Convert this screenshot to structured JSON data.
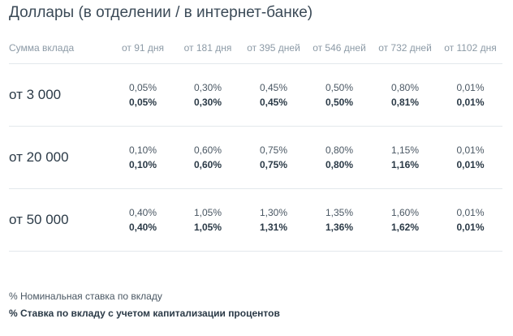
{
  "page_title": "Доллары (в отделении / в интернет-банке)",
  "table": {
    "amount_header": "Сумма вклада",
    "terms": [
      "от 91 дня",
      "от 181 дня",
      "от 395 дней",
      "от 546 дней",
      "от 732 дней",
      "от 1102 дня"
    ],
    "rows": [
      {
        "amount": "от 3 000",
        "nominal": [
          "0,05%",
          "0,30%",
          "0,45%",
          "0,50%",
          "0,80%",
          "0,01%"
        ],
        "effective": [
          "0,05%",
          "0,30%",
          "0,45%",
          "0,50%",
          "0,81%",
          "0,01%"
        ]
      },
      {
        "amount": "от 20 000",
        "nominal": [
          "0,10%",
          "0,60%",
          "0,75%",
          "0,80%",
          "1,15%",
          "0,01%"
        ],
        "effective": [
          "0,10%",
          "0,60%",
          "0,75%",
          "0,80%",
          "1,16%",
          "0,01%"
        ]
      },
      {
        "amount": "от 50 000",
        "nominal": [
          "0,40%",
          "1,05%",
          "1,30%",
          "1,35%",
          "1,60%",
          "0,01%"
        ],
        "effective": [
          "0,40%",
          "1,05%",
          "1,31%",
          "1,36%",
          "1,62%",
          "0,01%"
        ]
      }
    ]
  },
  "legend": {
    "nominal": "% Номинальная ставка по вкладу",
    "effective": "% Ставка по вкладу с учетом капитализации процентов"
  }
}
